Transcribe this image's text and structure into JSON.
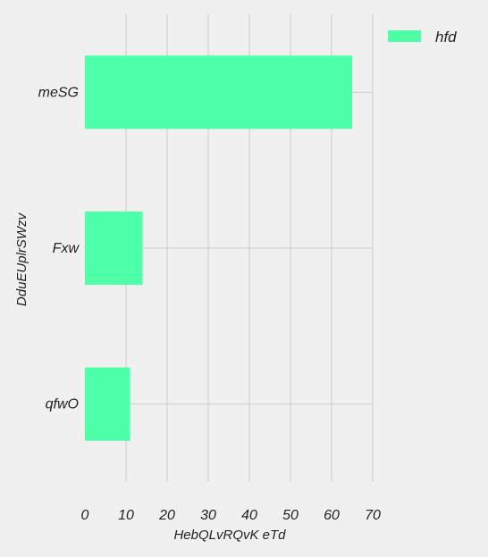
{
  "chart_data": {
    "type": "bar",
    "orientation": "horizontal",
    "categories": [
      "meSG",
      "Fxw",
      "qfwO"
    ],
    "series": [
      {
        "name": "hfd",
        "values": [
          65,
          14,
          11
        ],
        "color": "#4dffa6"
      }
    ],
    "xlabel": "HebQLvRQvK eTd",
    "ylabel": "DduEUplrSWzv",
    "xlim": [
      0,
      70
    ],
    "xticks": [
      0,
      10,
      20,
      30,
      40,
      50,
      60,
      70
    ],
    "grid": true,
    "legend_position": "top-right",
    "background": "#f0f0f0"
  }
}
